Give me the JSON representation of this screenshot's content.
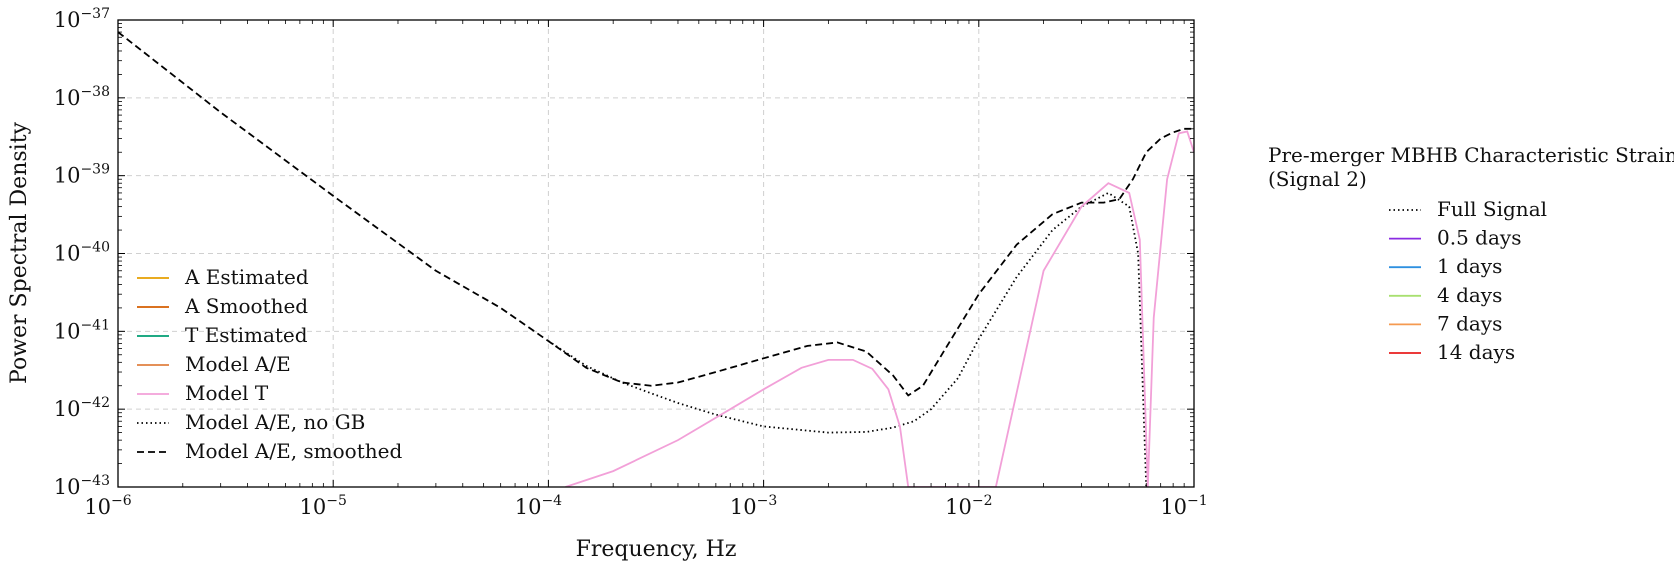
{
  "chart_data": {
    "type": "line",
    "xlabel": "Frequency, Hz",
    "ylabel": "Power Spectral Density",
    "xscale": "log",
    "yscale": "log",
    "xlim": [
      1e-06,
      0.1
    ],
    "ylim": [
      1e-43,
      1e-37
    ],
    "grid": true,
    "x_ticks": [
      {
        "value": 1e-06,
        "base": "10",
        "exp": "−6"
      },
      {
        "value": 1e-05,
        "base": "10",
        "exp": "−5"
      },
      {
        "value": 0.0001,
        "base": "10",
        "exp": "−4"
      },
      {
        "value": 0.001,
        "base": "10",
        "exp": "−3"
      },
      {
        "value": 0.01,
        "base": "10",
        "exp": "−2"
      },
      {
        "value": 0.1,
        "base": "10",
        "exp": "−1"
      }
    ],
    "y_ticks": [
      {
        "value": 1e-43,
        "base": "10",
        "exp": "−43"
      },
      {
        "value": 1e-42,
        "base": "10",
        "exp": "−42"
      },
      {
        "value": 1e-41,
        "base": "10",
        "exp": "−41"
      },
      {
        "value": 1e-40,
        "base": "10",
        "exp": "−40"
      },
      {
        "value": 1e-39,
        "base": "10",
        "exp": "−39"
      },
      {
        "value": 1e-38,
        "base": "10",
        "exp": "−38"
      },
      {
        "value": 1e-37,
        "base": "10",
        "exp": "−37"
      }
    ],
    "legend_main": {
      "placement": "lower-left",
      "entries": [
        {
          "label": "A Estimated",
          "color": "#E69F00",
          "style": "solid"
        },
        {
          "label": "A Smoothed",
          "color": "#D55E00",
          "style": "solid"
        },
        {
          "label": "T Estimated",
          "color": "#009E73",
          "style": "solid"
        },
        {
          "label": "Model A/E",
          "color": "#E08040",
          "style": "solid"
        },
        {
          "label": "Model T",
          "color": "#F2A0D8",
          "style": "solid"
        },
        {
          "label": "Model A/E, no GB",
          "color": "#000000",
          "style": "dotted"
        },
        {
          "label": "Model A/E, smoothed",
          "color": "#000000",
          "style": "dashed"
        }
      ]
    },
    "legend_signal": {
      "placement": "outside-right",
      "title_lines": [
        "Pre-merger MBHB Characteristic Strain",
        "(Signal 2)"
      ],
      "entries": [
        {
          "label": "Full Signal",
          "color": "#000000",
          "style": "dotted"
        },
        {
          "label": "0.5 days",
          "color": "#8A2BE2",
          "style": "solid"
        },
        {
          "label": "1 days",
          "color": "#2E90E0",
          "style": "solid"
        },
        {
          "label": "4 days",
          "color": "#A8E070",
          "style": "solid"
        },
        {
          "label": "7 days",
          "color": "#F59A50",
          "style": "solid"
        },
        {
          "label": "14 days",
          "color": "#E81E1E",
          "style": "solid"
        }
      ]
    },
    "series": [
      {
        "name": "Model A/E, smoothed",
        "style": "dashed",
        "color": "#000000",
        "x": [
          1e-06,
          3e-06,
          1e-05,
          3e-05,
          6e-05,
          0.0001,
          0.00015,
          0.00022,
          0.0003,
          0.0004,
          0.0006,
          0.001,
          0.0016,
          0.0022,
          0.003,
          0.004,
          0.0047,
          0.0055,
          0.007,
          0.01,
          0.015,
          0.022,
          0.03,
          0.038,
          0.045,
          0.052,
          0.06,
          0.07,
          0.08,
          0.09,
          0.1
        ],
        "y": [
          7e-38,
          6.5e-39,
          5.5e-40,
          6e-41,
          2e-41,
          7.5e-42,
          3.4e-42,
          2.2e-42,
          2e-42,
          2.2e-42,
          3e-42,
          4.5e-42,
          6.5e-42,
          7.2e-42,
          5.5e-42,
          2.7e-42,
          1.5e-42,
          2e-42,
          6e-42,
          3e-41,
          1.3e-40,
          3.2e-40,
          4.5e-40,
          4.5e-40,
          5e-40,
          9e-40,
          2e-39,
          3e-39,
          3.6e-39,
          4e-39,
          4e-39
        ]
      },
      {
        "name": "Model A/E, no GB",
        "style": "dotted",
        "color": "#000000",
        "x": [
          0.0001,
          0.00015,
          0.00022,
          0.0003,
          0.0004,
          0.0006,
          0.001,
          0.002,
          0.003,
          0.004,
          0.005,
          0.006,
          0.008,
          0.01,
          0.015,
          0.022,
          0.03,
          0.04,
          0.05,
          0.055,
          0.06
        ],
        "y": [
          7.5e-42,
          3.6e-42,
          2.2e-42,
          1.6e-42,
          1.2e-42,
          8.5e-43,
          6e-43,
          5e-43,
          5.1e-43,
          5.8e-43,
          7e-43,
          1e-42,
          2.5e-42,
          8e-42,
          5e-41,
          2e-40,
          4e-40,
          6e-40,
          4e-40,
          1e-40,
          1e-43
        ]
      },
      {
        "name": "Model T",
        "style": "solid",
        "color": "#F2A0D8",
        "x": [
          0.00012,
          0.0002,
          0.0004,
          0.0007,
          0.001,
          0.0015,
          0.002,
          0.0026,
          0.0032,
          0.0038,
          0.0043,
          0.0047,
          0.012,
          0.02,
          0.03,
          0.04,
          0.05,
          0.056,
          0.061,
          0.065,
          0.075,
          0.085,
          0.093,
          0.1
        ],
        "y": [
          1e-43,
          1.6e-43,
          4e-43,
          1e-42,
          1.8e-42,
          3.4e-42,
          4.3e-42,
          4.3e-42,
          3.3e-42,
          1.8e-42,
          6e-43,
          1e-43,
          1e-43,
          6e-41,
          4e-40,
          8e-40,
          6e-40,
          1.5e-40,
          1e-43,
          1.5e-41,
          9e-40,
          3.5e-39,
          3.7e-39,
          2e-39
        ]
      }
    ]
  }
}
